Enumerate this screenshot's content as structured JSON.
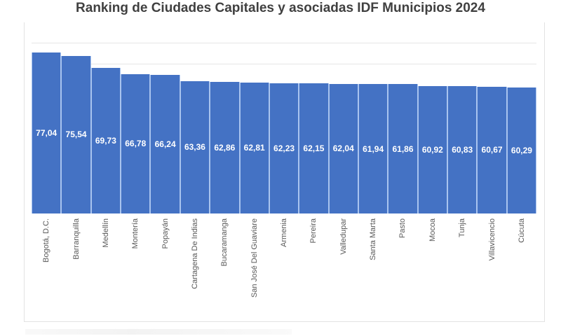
{
  "chart_data": {
    "type": "bar",
    "title": "Ranking de Ciudades Capitales y asociadas IDF Municipios 2024",
    "xlabel": "",
    "ylabel": "",
    "categories": [
      "Bogotá, D.C.",
      "Barranquilla",
      "Medellín",
      "Montería",
      "Popayán",
      "Cartagena De Indias",
      "Bucaramanga",
      "San José Del Guaviare",
      "Armenia",
      "Pereira",
      "Valledupar",
      "Santa Marta",
      "Pasto",
      "Mocoa",
      "Tunja",
      "Villavicencio",
      "Cúcuta"
    ],
    "values": [
      77.04,
      75.54,
      69.73,
      66.78,
      66.24,
      63.36,
      62.86,
      62.81,
      62.23,
      62.15,
      62.04,
      61.94,
      61.86,
      60.92,
      60.83,
      60.67,
      60.29
    ],
    "value_labels": [
      "77,04",
      "75,54",
      "69,73",
      "66,78",
      "66,24",
      "63,36",
      "62,86",
      "62,81",
      "62,23",
      "62,15",
      "62,04",
      "61,94",
      "61,86",
      "60,92",
      "60,83",
      "60,67",
      "60,29"
    ],
    "ylim": [
      0,
      88
    ],
    "grid": true,
    "legend": "none",
    "bar_color": "#4472c4",
    "data_label_position": "center"
  },
  "title": "Ranking de Ciudades Capitales y asociadas IDF Municipios 2024"
}
